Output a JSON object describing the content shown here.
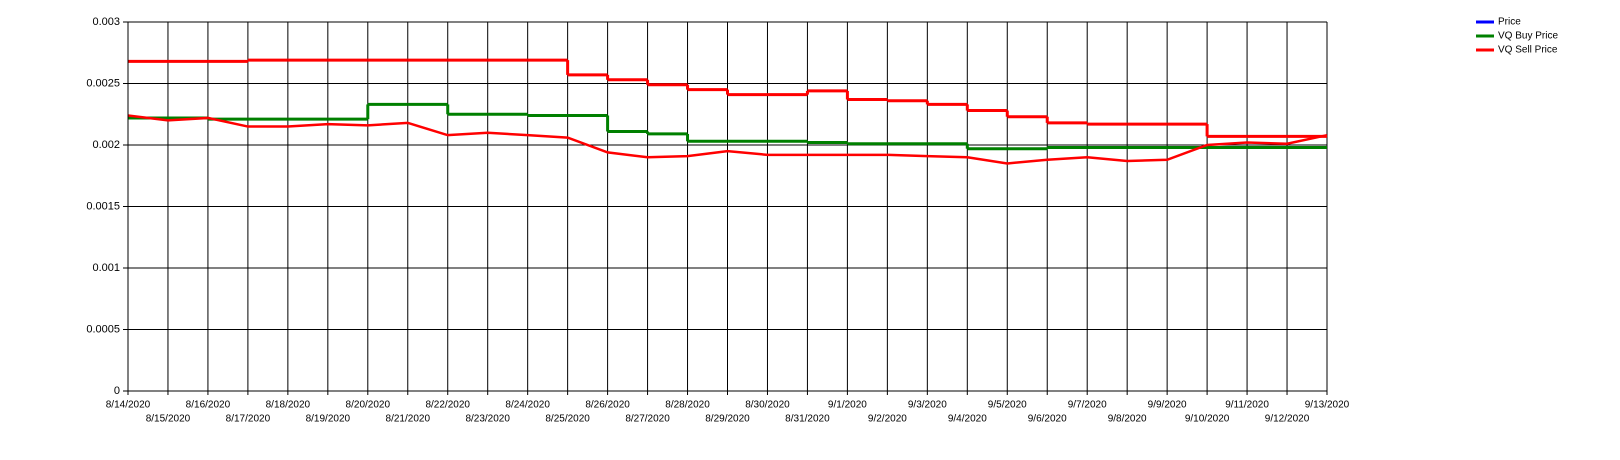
{
  "chart_data": {
    "type": "line",
    "x": [
      "8/14/2020",
      "8/15/2020",
      "8/16/2020",
      "8/17/2020",
      "8/18/2020",
      "8/19/2020",
      "8/20/2020",
      "8/21/2020",
      "8/22/2020",
      "8/23/2020",
      "8/24/2020",
      "8/25/2020",
      "8/26/2020",
      "8/27/2020",
      "8/28/2020",
      "8/29/2020",
      "8/30/2020",
      "8/31/2020",
      "9/1/2020",
      "9/2/2020",
      "9/3/2020",
      "9/4/2020",
      "9/5/2020",
      "9/6/2020",
      "9/7/2020",
      "9/8/2020",
      "9/9/2020",
      "9/10/2020",
      "9/11/2020",
      "9/12/2020",
      "9/13/2020"
    ],
    "series": [
      {
        "name": "Price",
        "color": "#0000ff",
        "line_color": "#ff0000",
        "step": false,
        "values": [
          0.00224,
          0.0022,
          0.00222,
          0.00215,
          0.00215,
          0.00217,
          0.00216,
          0.00218,
          0.00208,
          0.0021,
          0.00208,
          0.00206,
          0.00194,
          0.0019,
          0.00191,
          0.00195,
          0.00192,
          0.00192,
          0.00192,
          0.00192,
          0.00191,
          0.0019,
          0.00185,
          0.00188,
          0.0019,
          0.00187,
          0.00188,
          0.002,
          0.00202,
          0.00201,
          0.00208
        ]
      },
      {
        "name": "VQ Buy Price",
        "color": "#008000",
        "line_color": "#008000",
        "step": true,
        "values": [
          0.00222,
          0.00222,
          0.00221,
          0.00221,
          0.00221,
          0.00221,
          0.00233,
          0.00233,
          0.00225,
          0.00225,
          0.00224,
          0.00224,
          0.00211,
          0.00209,
          0.00203,
          0.00203,
          0.00203,
          0.00202,
          0.00201,
          0.00201,
          0.00201,
          0.00197,
          0.00197,
          0.00198,
          0.00198,
          0.00198,
          0.00198,
          0.00198,
          0.00198,
          0.00198,
          0.00198
        ]
      },
      {
        "name": "VQ Sell Price",
        "color": "#ff0000",
        "line_color": "#ff0000",
        "step": true,
        "values": [
          0.00268,
          0.00268,
          0.00268,
          0.00269,
          0.00269,
          0.00269,
          0.00269,
          0.00269,
          0.00269,
          0.00269,
          0.00269,
          0.00257,
          0.00253,
          0.00249,
          0.00245,
          0.00241,
          0.00241,
          0.00244,
          0.00237,
          0.00236,
          0.00233,
          0.00228,
          0.00223,
          0.00218,
          0.00217,
          0.00217,
          0.00217,
          0.00207,
          0.00207,
          0.00207,
          0.00207
        ]
      }
    ],
    "ylim": [
      0,
      0.003
    ],
    "yticks": [
      0,
      0.0005,
      0.001,
      0.0015,
      0.002,
      0.0025,
      0.003
    ],
    "grid": true,
    "legend": "top-right"
  }
}
